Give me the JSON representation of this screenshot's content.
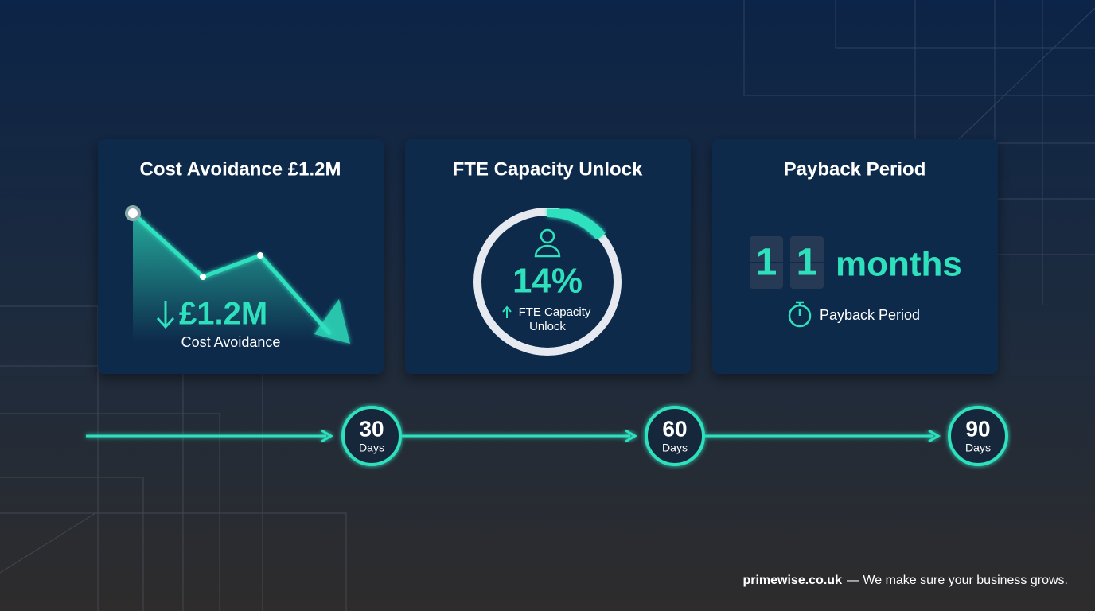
{
  "cards": [
    {
      "title": "Cost Avoidance £1.2M",
      "value": "£1.2M",
      "caption": "Cost Avoidance"
    },
    {
      "title": "FTE Capacity Unlock",
      "value": "14%",
      "caption": [
        "FTE Capacity",
        "Unlock"
      ]
    },
    {
      "title": "Payback Period",
      "digits": [
        "1",
        "1"
      ],
      "unit": "months",
      "caption": "Payback Period"
    }
  ],
  "timeline": [
    {
      "number": "30",
      "label": "Days"
    },
    {
      "number": "60",
      "label": "Days"
    },
    {
      "number": "90",
      "label": "Days"
    }
  ],
  "footer": {
    "site": "primewise.co.uk",
    "tagline": "— We make sure your business grows."
  }
}
